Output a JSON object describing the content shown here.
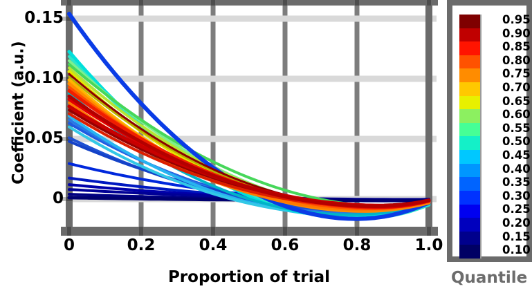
{
  "figure": {
    "frame_color": "#6b6b6b",
    "vgrid_color": "#7d7d7d",
    "hgrid_color": "#d9d9d9",
    "tick_nub_color": "#4d4d4d",
    "outer_tick_color": "#bdbdbd",
    "background": "#ffffff"
  },
  "chart_data": {
    "type": "line",
    "title": "",
    "xlabel": "Proportion of trial",
    "ylabel": "Coefficient (a.u.)",
    "x_ticks": [
      "0",
      "0.2",
      "0.4",
      "0.6",
      "0.8",
      "1.0"
    ],
    "x_tick_values": [
      0,
      0.2,
      0.4,
      0.6,
      0.8,
      1.0
    ],
    "y_ticks": [
      "0",
      "0.05",
      "0.10",
      "0.15"
    ],
    "y_tick_values": [
      0,
      0.05,
      0.1,
      0.15
    ],
    "xlim": [
      0,
      1
    ],
    "ylim": [
      -0.024,
      0.161
    ],
    "grid": true,
    "legend_position": "colorbar-right",
    "series_model": "each curve: v(x)=ym+(y0-ym)*((xm-x)/xm)^2 for x<=xm else ym+(y1-ym)*((x-xm)/(1-xm))^2 ; y0=value at x=0, (xm,ym)=vertex of dip, y1=value at x=1",
    "series": [
      {
        "name": "curve-navy-1",
        "c": "#0028dc",
        "y0": 0.0295,
        "xm": 0.85,
        "ym": -0.0015,
        "y1": -0.0005,
        "w": 4
      },
      {
        "name": "curve-navy-2",
        "c": "#0018c0",
        "y0": 0.0175,
        "xm": 0.9,
        "ym": -0.001,
        "y1": -0.0003,
        "w": 4
      },
      {
        "name": "curve-navy-3",
        "c": "#0000aa",
        "y0": 0.012,
        "xm": 0.9,
        "ym": -0.0005,
        "y1": -0.0002,
        "w": 4
      },
      {
        "name": "curve-navy-4",
        "c": "#000096",
        "y0": 0.008,
        "xm": 0.95,
        "ym": -0.0003,
        "y1": -0.0002,
        "w": 4
      },
      {
        "name": "curve-navy-5",
        "c": "#000082",
        "y0": 0.004,
        "xm": 0.95,
        "ym": -0.001,
        "y1": -0.001,
        "w": 4
      },
      {
        "name": "curve-navy-6",
        "c": "#000070",
        "y0": 0.0012,
        "xm": 0.95,
        "ym": -0.0012,
        "y1": -0.0012,
        "w": 5
      },
      {
        "name": "curve-blue-1",
        "c": "#1e5ae1",
        "y0": 0.063,
        "xm": 0.85,
        "ym": -0.0115,
        "y1": -0.0035,
        "w": 4
      },
      {
        "name": "curve-blue-2",
        "c": "#2878e6",
        "y0": 0.066,
        "xm": 0.82,
        "ym": -0.0125,
        "y1": -0.004,
        "w": 4
      },
      {
        "name": "curve-blue-3",
        "c": "#1e50d2",
        "y0": 0.051,
        "xm": 0.83,
        "ym": -0.01,
        "y1": -0.003,
        "w": 4
      },
      {
        "name": "curve-blue-4",
        "c": "#1442c8",
        "y0": 0.048,
        "xm": 0.86,
        "ym": -0.008,
        "y1": -0.002,
        "w": 4
      },
      {
        "name": "curve-skyblue",
        "c": "#28b4f0",
        "y0": 0.069,
        "xm": 0.8,
        "ym": -0.0145,
        "y1": -0.005,
        "w": 4
      },
      {
        "name": "curve-lightblue",
        "c": "#32c8e6",
        "y0": 0.06,
        "xm": 0.79,
        "ym": -0.0135,
        "y1": -0.0045,
        "w": 4
      },
      {
        "name": "curve-cyan",
        "c": "#00e0dc",
        "y0": 0.1225,
        "xm": 0.78,
        "ym": -0.015,
        "y1": -0.0045,
        "w": 5
      },
      {
        "name": "curve-turquoise",
        "c": "#2ee6c8",
        "y0": 0.1185,
        "xm": 0.82,
        "ym": -0.016,
        "y1": -0.005,
        "w": 4
      },
      {
        "name": "curve-lightgreen",
        "c": "#7df08c",
        "y0": 0.115,
        "xm": 0.88,
        "ym": -0.01,
        "y1": -0.002,
        "w": 4
      },
      {
        "name": "curve-green",
        "c": "#46d75a",
        "y0": 0.112,
        "xm": 0.92,
        "ym": -0.007,
        "y1": -0.0015,
        "w": 4
      },
      {
        "name": "curve-yellowgreen",
        "c": "#b4e632",
        "y0": 0.109,
        "xm": 0.87,
        "ym": -0.0085,
        "y1": -0.002,
        "w": 4
      },
      {
        "name": "curve-teal",
        "c": "#00b4c8",
        "y0": 0.088,
        "xm": 0.78,
        "ym": -0.013,
        "y1": -0.004,
        "w": 4
      },
      {
        "name": "curve-outlier-blue",
        "c": "#0a3ce6",
        "y0": 0.154,
        "xm": 0.8,
        "ym": -0.0165,
        "y1": -0.003,
        "w": 6
      },
      {
        "name": "curve-yellow",
        "c": "#e6e600",
        "y0": 0.106,
        "xm": 0.82,
        "ym": -0.0095,
        "y1": -0.003,
        "w": 5
      },
      {
        "name": "curve-olive",
        "c": "#b4b400",
        "y0": 0.1015,
        "xm": 0.86,
        "ym": -0.008,
        "y1": -0.002,
        "w": 3
      },
      {
        "name": "curve-amber",
        "c": "#ffb400",
        "y0": 0.099,
        "xm": 0.8,
        "ym": -0.009,
        "y1": -0.0025,
        "w": 5
      },
      {
        "name": "curve-orange",
        "c": "#ff8c00",
        "y0": 0.096,
        "xm": 0.82,
        "ym": -0.01,
        "y1": -0.003,
        "w": 5
      },
      {
        "name": "curve-orange-2",
        "c": "#ff7800",
        "y0": 0.08,
        "xm": 0.83,
        "ym": -0.009,
        "y1": -0.0025,
        "w": 4
      },
      {
        "name": "curve-orangered",
        "c": "#ff5000",
        "y0": 0.093,
        "xm": 0.84,
        "ym": -0.008,
        "y1": -0.002,
        "w": 4
      },
      {
        "name": "curve-maroon",
        "c": "#960000",
        "y0": 0.074,
        "xm": 0.86,
        "ym": -0.005,
        "y1": -0.001,
        "w": 4
      },
      {
        "name": "curve-darkred",
        "c": "#8c0000",
        "y0": 0.104,
        "xm": 0.85,
        "ym": -0.006,
        "y1": -0.001,
        "w": 3
      },
      {
        "name": "curve-red-1",
        "c": "#dc1e00",
        "y0": 0.071,
        "xm": 0.84,
        "ym": -0.006,
        "y1": -0.0015,
        "w": 4
      },
      {
        "name": "curve-red-2",
        "c": "#f01e00",
        "y0": 0.09,
        "xm": 0.86,
        "ym": -0.007,
        "y1": -0.0015,
        "w": 5
      },
      {
        "name": "curve-red-3",
        "c": "#e10000",
        "y0": 0.083,
        "xm": 0.87,
        "ym": -0.0065,
        "y1": -0.0015,
        "w": 5
      },
      {
        "name": "curve-red-4",
        "c": "#c80000",
        "y0": 0.077,
        "xm": 0.88,
        "ym": -0.0055,
        "y1": -0.001,
        "w": 5
      },
      {
        "name": "curve-firebrick",
        "c": "#b40000",
        "y0": 0.0855,
        "xm": 0.85,
        "ym": -0.006,
        "y1": -0.001,
        "w": 5
      }
    ],
    "colorbar": {
      "title": "Quantile",
      "colors": [
        "#7f0000",
        "#c00000",
        "#ff1400",
        "#ff5200",
        "#ff8c00",
        "#ffc800",
        "#e8f000",
        "#8cf060",
        "#46ff96",
        "#14f0c8",
        "#00c8ff",
        "#0096ff",
        "#0064ff",
        "#0032ff",
        "#0000f0",
        "#0000be",
        "#00008c",
        "#000064"
      ],
      "labels": [
        "0.95",
        "0.90",
        "0.85",
        "0.80",
        "0.75",
        "0.70",
        "0.65",
        "0.60",
        "0.55",
        "0.50",
        "0.45",
        "0.40",
        "0.35",
        "0.30",
        "0.25",
        "0.20",
        "0.15",
        "0.10"
      ]
    }
  }
}
